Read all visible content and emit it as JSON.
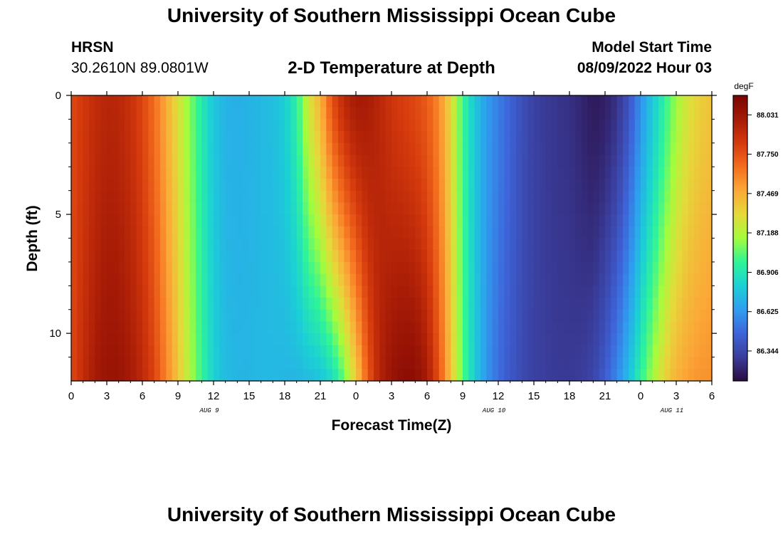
{
  "header": {
    "title": "University of Southern Mississippi Ocean Cube",
    "station": "HRSN",
    "location": "30.2610N  89.0801W",
    "subtitle": "2-D Temperature at Depth",
    "start_label": "Model Start Time",
    "start_time": "08/09/2022 Hour 03"
  },
  "footer": {
    "title": "University of Southern Mississippi Ocean Cube"
  },
  "chart_data": {
    "type": "heatmap",
    "title": "2-D Temperature at Depth",
    "xlabel": "Forecast Time(Z)",
    "ylabel": "Depth (ft)",
    "x_range_hours": [
      0,
      54
    ],
    "y_range_ft": [
      0,
      12
    ],
    "x_ticks": [
      {
        "hour": 0,
        "label": "0"
      },
      {
        "hour": 3,
        "label": "3"
      },
      {
        "hour": 6,
        "label": "6"
      },
      {
        "hour": 9,
        "label": "9"
      },
      {
        "hour": 12,
        "label": "12"
      },
      {
        "hour": 15,
        "label": "15"
      },
      {
        "hour": 18,
        "label": "18"
      },
      {
        "hour": 21,
        "label": "21"
      },
      {
        "hour": 24,
        "label": "0"
      },
      {
        "hour": 27,
        "label": "3"
      },
      {
        "hour": 30,
        "label": "6"
      },
      {
        "hour": 33,
        "label": "9"
      },
      {
        "hour": 36,
        "label": "12"
      },
      {
        "hour": 39,
        "label": "15"
      },
      {
        "hour": 42,
        "label": "18"
      },
      {
        "hour": 45,
        "label": "21"
      },
      {
        "hour": 48,
        "label": "0"
      },
      {
        "hour": 51,
        "label": "3"
      },
      {
        "hour": 54,
        "label": "6"
      }
    ],
    "date_labels": [
      {
        "hour": 12,
        "label": "AUG 9"
      },
      {
        "hour": 36,
        "label": "AUG 10"
      },
      {
        "hour": 51,
        "label": "AUG 11"
      }
    ],
    "y_ticks": [
      {
        "depth": 0,
        "label": "0"
      },
      {
        "depth": 5,
        "label": "5"
      },
      {
        "depth": 10,
        "label": "10"
      }
    ],
    "colorbar": {
      "unit": "degF",
      "min": 86.13,
      "max": 88.17,
      "tick_values": [
        88.031,
        87.75,
        87.469,
        87.188,
        86.906,
        86.625,
        86.344
      ],
      "tick_labels": [
        "88.031",
        "87.750",
        "87.469",
        "87.188",
        "86.906",
        "86.625",
        "86.344"
      ],
      "colors": [
        "#2a0b40",
        "#3a3d9b",
        "#3e64d9",
        "#2f9ef0",
        "#1bd0d5",
        "#2ff597",
        "#a4fc3c",
        "#e5d93a",
        "#fba938",
        "#f46d1e",
        "#d53a0d",
        "#a51a06",
        "#7a0403"
      ]
    },
    "temperature_profile": {
      "description_units": "degF at 1-hour steps, hours 0..54",
      "surface_degF": [
        87.78,
        87.84,
        87.9,
        87.94,
        87.93,
        87.88,
        87.79,
        87.66,
        87.48,
        87.3,
        87.1,
        86.92,
        86.78,
        86.71,
        86.7,
        86.71,
        86.73,
        86.75,
        86.8,
        86.95,
        87.26,
        87.45,
        87.76,
        87.92,
        88.0,
        87.99,
        87.93,
        87.86,
        87.82,
        87.78,
        87.72,
        87.58,
        87.32,
        87.0,
        86.78,
        86.64,
        86.55,
        86.46,
        86.38,
        86.32,
        86.29,
        86.27,
        86.26,
        86.22,
        86.18,
        86.2,
        86.26,
        86.4,
        86.6,
        86.78,
        86.96,
        87.14,
        87.28,
        87.36,
        87.4
      ],
      "bottom_degF": [
        87.78,
        87.9,
        88.0,
        88.05,
        88.05,
        88.0,
        87.92,
        87.8,
        87.6,
        87.4,
        87.18,
        86.98,
        86.82,
        86.74,
        86.72,
        86.72,
        86.73,
        86.73,
        86.72,
        86.72,
        86.74,
        86.76,
        86.85,
        87.05,
        87.35,
        87.72,
        87.95,
        88.05,
        88.1,
        88.1,
        88.0,
        87.75,
        87.4,
        87.05,
        86.8,
        86.62,
        86.5,
        86.42,
        86.36,
        86.32,
        86.3,
        86.29,
        86.29,
        86.3,
        86.34,
        86.44,
        86.58,
        86.76,
        86.96,
        87.16,
        87.34,
        87.46,
        87.52,
        87.55,
        87.56
      ]
    }
  }
}
